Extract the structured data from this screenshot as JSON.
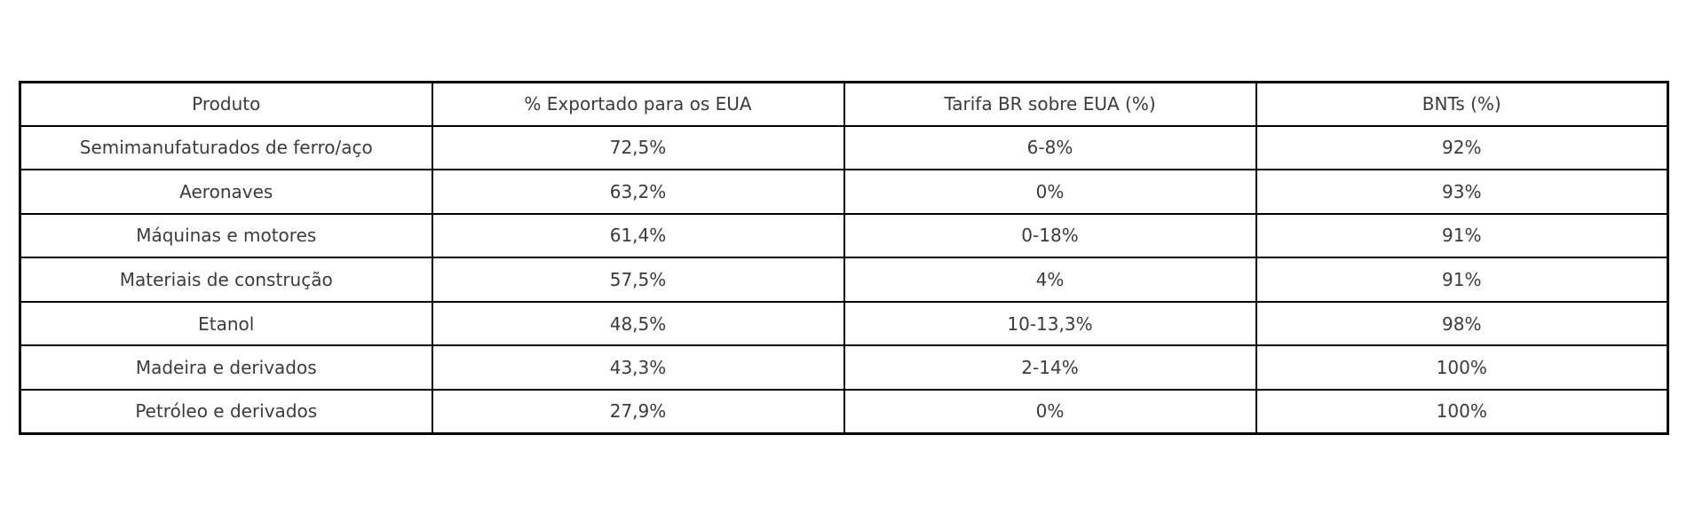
{
  "chart_data": {
    "type": "table",
    "columns": [
      "Produto",
      "% Exportado para os EUA",
      "Tarifa BR sobre EUA (%)",
      "BNTs (%)"
    ],
    "rows": [
      [
        "Semimanufaturados de ferro/aço",
        "72,5%",
        "6-8%",
        "92%"
      ],
      [
        "Aeronaves",
        "63,2%",
        "0%",
        "93%"
      ],
      [
        "Máquinas e motores",
        "61,4%",
        "0-18%",
        "91%"
      ],
      [
        "Materiais de construção",
        "57,5%",
        "4%",
        "91%"
      ],
      [
        "Etanol",
        "48,5%",
        "10-13,3%",
        "98%"
      ],
      [
        "Madeira e derivados",
        "43,3%",
        "2-14%",
        "100%"
      ],
      [
        "Petróleo e derivados",
        "27,9%",
        "0%",
        "100%"
      ]
    ],
    "title": "",
    "legend": null,
    "grid": true
  },
  "colors": {
    "background": "#ffffff",
    "border": "#000000",
    "text": "#3b3b3b"
  }
}
